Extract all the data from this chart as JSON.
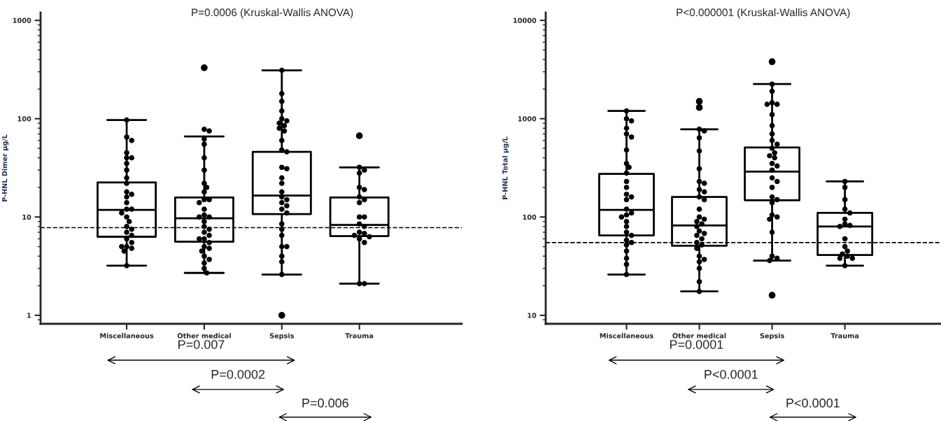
{
  "chart_data": [
    {
      "type": "box",
      "title": "P=0.0006 (Kruskal-Wallis ANOVA)",
      "ylabel": "P-HNL Dimer μg/L",
      "categories": [
        "Miscellaneous",
        "Other medical",
        "Sepsis",
        "Trauma"
      ],
      "boxes": [
        {
          "low": 3.2,
          "q1": 6.3,
          "median": 11.8,
          "q3": 22.5,
          "high": 97
        },
        {
          "low": 2.7,
          "q1": 5.6,
          "median": 9.7,
          "q3": 15.8,
          "high": 66,
          "outliers": [
            330
          ]
        },
        {
          "low": 2.6,
          "q1": 10.7,
          "median": 16.5,
          "q3": 46,
          "high": 310,
          "outliers": [
            1.0
          ]
        },
        {
          "low": 2.1,
          "q1": 6.4,
          "median": 8.3,
          "q3": 15.8,
          "high": 32,
          "outliers": [
            67
          ]
        }
      ],
      "log": true,
      "ylim": [
        0.82,
        1200
      ],
      "yticks": [
        1,
        10,
        100,
        1000
      ],
      "marker": "circle",
      "ref_lines": [
        {
          "axis": "y",
          "value": 7.8,
          "line_style": "dashed",
          "color": "#000000"
        }
      ],
      "annotations": [
        "P=0.007",
        "P=0.0002",
        "P=0.006"
      ],
      "series": [
        {
          "type": "scatter",
          "color": "#000000",
          "x": [
            "Miscellaneous",
            "Miscellaneous",
            "Miscellaneous",
            "Miscellaneous",
            "Miscellaneous",
            "Miscellaneous",
            "Miscellaneous",
            "Miscellaneous",
            "Miscellaneous",
            "Miscellaneous",
            "Miscellaneous",
            "Miscellaneous",
            "Miscellaneous",
            "Miscellaneous",
            "Miscellaneous",
            "Miscellaneous",
            "Miscellaneous",
            "Miscellaneous",
            "Miscellaneous",
            "Miscellaneous",
            "Miscellaneous",
            "Miscellaneous",
            "Miscellaneous",
            "Miscellaneous",
            "Miscellaneous",
            "Miscellaneous",
            "Miscellaneous",
            "Miscellaneous",
            "Miscellaneous",
            "Miscellaneous"
          ],
          "values": [
            97,
            65,
            60,
            45,
            40,
            40,
            35,
            30,
            25,
            22,
            18,
            17,
            16,
            14,
            12,
            12,
            11,
            10,
            9,
            8,
            7.5,
            7,
            6.5,
            6,
            5.5,
            5,
            5,
            4.8,
            4.5,
            3.2
          ]
        },
        {
          "type": "scatter",
          "color": "#000000",
          "x": [
            "Other medical",
            "Other medical",
            "Other medical",
            "Other medical",
            "Other medical",
            "Other medical",
            "Other medical",
            "Other medical",
            "Other medical",
            "Other medical",
            "Other medical",
            "Other medical",
            "Other medical",
            "Other medical",
            "Other medical",
            "Other medical",
            "Other medical",
            "Other medical",
            "Other medical",
            "Other medical",
            "Other medical",
            "Other medical",
            "Other medical",
            "Other medical",
            "Other medical",
            "Other medical",
            "Other medical",
            "Other medical",
            "Other medical",
            "Other medical",
            "Other medical",
            "Other medical"
          ],
          "values": [
            78,
            75,
            62,
            55,
            40,
            30,
            22,
            20,
            18,
            15,
            15,
            14,
            12,
            10.5,
            10,
            10,
            9,
            8,
            7.5,
            7,
            6.5,
            6,
            6,
            5.5,
            5,
            4.8,
            4.5,
            4,
            3.7,
            3.4,
            3,
            2.7
          ]
        },
        {
          "type": "scatter",
          "color": "#000000",
          "x": [
            "Sepsis",
            "Sepsis",
            "Sepsis",
            "Sepsis",
            "Sepsis",
            "Sepsis",
            "Sepsis",
            "Sepsis",
            "Sepsis",
            "Sepsis",
            "Sepsis",
            "Sepsis",
            "Sepsis",
            "Sepsis",
            "Sepsis",
            "Sepsis",
            "Sepsis",
            "Sepsis",
            "Sepsis",
            "Sepsis",
            "Sepsis",
            "Sepsis",
            "Sepsis",
            "Sepsis",
            "Sepsis",
            "Sepsis",
            "Sepsis",
            "Sepsis",
            "Sepsis",
            "Sepsis",
            "Sepsis",
            "Sepsis"
          ],
          "values": [
            310,
            180,
            150,
            120,
            100,
            95,
            90,
            85,
            80,
            75,
            60,
            48,
            46,
            32,
            31,
            25,
            22,
            18,
            16,
            15,
            14,
            13,
            12,
            11,
            8.5,
            7.5,
            6.5,
            5,
            5,
            4,
            3.5,
            2.6
          ]
        },
        {
          "type": "scatter",
          "color": "#000000",
          "x": [
            "Trauma",
            "Trauma",
            "Trauma",
            "Trauma",
            "Trauma",
            "Trauma",
            "Trauma",
            "Trauma",
            "Trauma",
            "Trauma",
            "Trauma",
            "Trauma",
            "Trauma",
            "Trauma",
            "Trauma",
            "Trauma",
            "Trauma",
            "Trauma",
            "Trauma",
            "Trauma"
          ],
          "values": [
            32,
            30,
            28,
            20,
            19,
            16,
            15,
            14,
            10,
            10,
            8.5,
            8,
            7,
            6.8,
            6.5,
            6.3,
            6,
            5.5,
            2.1,
            2.1
          ]
        }
      ]
    },
    {
      "type": "box",
      "title": "P<0.000001 (Kruskal-Wallis ANOVA)",
      "ylabel": "P-HNL Total μg/L",
      "categories": [
        "Miscellaneous",
        "Other medical",
        "Sepsis",
        "Trauma"
      ],
      "boxes": [
        {
          "low": 26,
          "q1": 65,
          "median": 118,
          "q3": 275,
          "high": 1200
        },
        {
          "low": 17.5,
          "q1": 51,
          "median": 82,
          "q3": 160,
          "high": 780,
          "outliers": [
            1300,
            1500
          ]
        },
        {
          "low": 36,
          "q1": 148,
          "median": 290,
          "q3": 510,
          "high": 2250,
          "outliers": [
            3800,
            16
          ]
        },
        {
          "low": 32,
          "q1": 41,
          "median": 80,
          "q3": 110,
          "high": 230
        }
      ],
      "log": true,
      "ylim": [
        8.2,
        12000
      ],
      "yticks": [
        10,
        100,
        1000,
        10000
      ],
      "marker": "circle",
      "ref_lines": [
        {
          "axis": "y",
          "value": 55,
          "line_style": "dashed",
          "color": "#000000"
        }
      ],
      "annotations": [
        "P=0.0001",
        "P<0.0001",
        "P<0.0001"
      ],
      "series": [
        {
          "type": "scatter",
          "color": "#000000",
          "x": [
            "Miscellaneous",
            "Miscellaneous",
            "Miscellaneous",
            "Miscellaneous",
            "Miscellaneous",
            "Miscellaneous",
            "Miscellaneous",
            "Miscellaneous",
            "Miscellaneous",
            "Miscellaneous",
            "Miscellaneous",
            "Miscellaneous",
            "Miscellaneous",
            "Miscellaneous",
            "Miscellaneous",
            "Miscellaneous",
            "Miscellaneous",
            "Miscellaneous",
            "Miscellaneous",
            "Miscellaneous",
            "Miscellaneous",
            "Miscellaneous",
            "Miscellaneous",
            "Miscellaneous",
            "Miscellaneous",
            "Miscellaneous",
            "Miscellaneous",
            "Miscellaneous",
            "Miscellaneous",
            "Miscellaneous"
          ],
          "values": [
            1200,
            1000,
            950,
            800,
            700,
            650,
            480,
            350,
            320,
            280,
            230,
            200,
            170,
            160,
            150,
            120,
            110,
            105,
            100,
            90,
            80,
            70,
            65,
            58,
            55,
            52,
            45,
            38,
            33,
            26
          ]
        },
        {
          "type": "scatter",
          "color": "#000000",
          "x": [
            "Other medical",
            "Other medical",
            "Other medical",
            "Other medical",
            "Other medical",
            "Other medical",
            "Other medical",
            "Other medical",
            "Other medical",
            "Other medical",
            "Other medical",
            "Other medical",
            "Other medical",
            "Other medical",
            "Other medical",
            "Other medical",
            "Other medical",
            "Other medical",
            "Other medical",
            "Other medical",
            "Other medical",
            "Other medical",
            "Other medical",
            "Other medical",
            "Other medical",
            "Other medical",
            "Other medical",
            "Other medical",
            "Other medical",
            "Other medical"
          ],
          "values": [
            780,
            750,
            640,
            470,
            310,
            230,
            220,
            190,
            180,
            160,
            150,
            120,
            100,
            95,
            90,
            85,
            80,
            72,
            68,
            65,
            60,
            55,
            52,
            48,
            40,
            37,
            35,
            30,
            22,
            17.5
          ]
        },
        {
          "type": "scatter",
          "color": "#000000",
          "x": [
            "Sepsis",
            "Sepsis",
            "Sepsis",
            "Sepsis",
            "Sepsis",
            "Sepsis",
            "Sepsis",
            "Sepsis",
            "Sepsis",
            "Sepsis",
            "Sepsis",
            "Sepsis",
            "Sepsis",
            "Sepsis",
            "Sepsis",
            "Sepsis",
            "Sepsis",
            "Sepsis",
            "Sepsis",
            "Sepsis",
            "Sepsis",
            "Sepsis",
            "Sepsis",
            "Sepsis",
            "Sepsis",
            "Sepsis",
            "Sepsis",
            "Sepsis",
            "Sepsis",
            "Sepsis"
          ],
          "values": [
            2250,
            1900,
            1450,
            1400,
            1400,
            1100,
            850,
            700,
            600,
            550,
            500,
            450,
            420,
            400,
            350,
            330,
            300,
            250,
            230,
            200,
            160,
            150,
            140,
            105,
            100,
            95,
            70,
            40,
            38,
            36
          ]
        },
        {
          "type": "scatter",
          "color": "#000000",
          "x": [
            "Trauma",
            "Trauma",
            "Trauma",
            "Trauma",
            "Trauma",
            "Trauma",
            "Trauma",
            "Trauma",
            "Trauma",
            "Trauma",
            "Trauma",
            "Trauma",
            "Trauma",
            "Trauma",
            "Trauma",
            "Trauma",
            "Trauma"
          ],
          "values": [
            230,
            200,
            150,
            120,
            110,
            95,
            85,
            82,
            80,
            60,
            50,
            45,
            42,
            40,
            38,
            38,
            32
          ]
        }
      ]
    }
  ]
}
